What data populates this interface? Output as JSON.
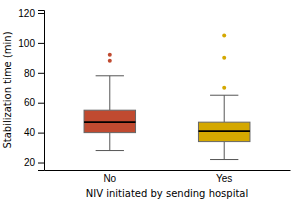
{
  "chart_data": {
    "type": "box",
    "categories": [
      "No",
      "Yes"
    ],
    "boxes": [
      {
        "median": 47,
        "q1": 40,
        "q3": 55,
        "whisker_low": 28,
        "whisker_high": 78,
        "outliers": [
          88,
          92
        ]
      },
      {
        "median": 41,
        "q1": 34,
        "q3": 47,
        "whisker_low": 22,
        "whisker_high": 65,
        "outliers": [
          70,
          90,
          105
        ]
      }
    ],
    "colors": [
      "#C04A30",
      "#D4A800"
    ],
    "ylabel": "Stabilization time (min)",
    "xlabel": "NIV initiated by sending hospital",
    "ylim": [
      15,
      122
    ],
    "yticks": [
      20,
      40,
      60,
      80,
      100,
      120
    ]
  }
}
